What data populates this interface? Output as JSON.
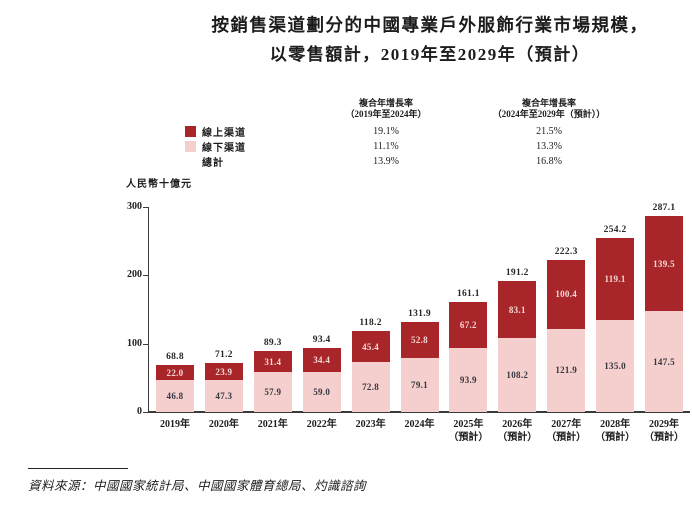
{
  "title": {
    "line1": "按銷售渠道劃分的中國專業戶外服飾行業市場規模，",
    "line2": "以零售額計，2019年至2029年（預計）"
  },
  "cagr": {
    "col1_header": "複合年增長率\n（2019年至2024年）",
    "col2_header": "複合年增長率\n（2024年至2029年（預計））",
    "rows": [
      {
        "label": "線上渠道",
        "swatch": "#A8262A",
        "col1": "19.1%",
        "col2": "21.5%"
      },
      {
        "label": "線下渠道",
        "swatch": "#F5CFCD",
        "col1": "11.1%",
        "col2": "13.3%"
      },
      {
        "label": "總計",
        "swatch": null,
        "col1": "13.9%",
        "col2": "16.8%"
      }
    ]
  },
  "chart_data": {
    "type": "bar",
    "stacked": true,
    "unit_label": "人民幣十億元",
    "ylim": [
      0,
      300
    ],
    "yticks": [
      0,
      100,
      200,
      300
    ],
    "grid": false,
    "categories": [
      {
        "label": "2019年",
        "sublabel": ""
      },
      {
        "label": "2020年",
        "sublabel": ""
      },
      {
        "label": "2021年",
        "sublabel": ""
      },
      {
        "label": "2022年",
        "sublabel": ""
      },
      {
        "label": "2023年",
        "sublabel": ""
      },
      {
        "label": "2024年",
        "sublabel": ""
      },
      {
        "label": "2025年",
        "sublabel": "（預計）"
      },
      {
        "label": "2026年",
        "sublabel": "（預計）"
      },
      {
        "label": "2027年",
        "sublabel": "（預計）"
      },
      {
        "label": "2028年",
        "sublabel": "（預計）"
      },
      {
        "label": "2029年",
        "sublabel": "（預計）"
      }
    ],
    "series": [
      {
        "name": "線下渠道",
        "color": "#F5CFCD",
        "values": [
          46.8,
          47.3,
          57.9,
          59.0,
          72.8,
          79.1,
          93.9,
          108.2,
          121.9,
          135.0,
          147.5
        ]
      },
      {
        "name": "線上渠道",
        "color": "#A8262A",
        "values": [
          22.0,
          23.9,
          31.4,
          34.4,
          45.4,
          52.8,
          67.2,
          83.1,
          100.4,
          119.1,
          139.5
        ]
      }
    ],
    "totals": [
      68.8,
      71.2,
      89.3,
      93.4,
      118.2,
      131.9,
      161.1,
      191.2,
      222.3,
      254.2,
      287.1
    ]
  },
  "colors": {
    "online": "#A8262A",
    "offline": "#F5CFCD",
    "total_label": "#26262c",
    "label_on_dark": "#F4D8D6",
    "label_on_light": "#36363e",
    "axis": "#3d3d3d"
  },
  "source": "資料來源：中國國家統計局、中國國家體育總局、灼識諮詢"
}
